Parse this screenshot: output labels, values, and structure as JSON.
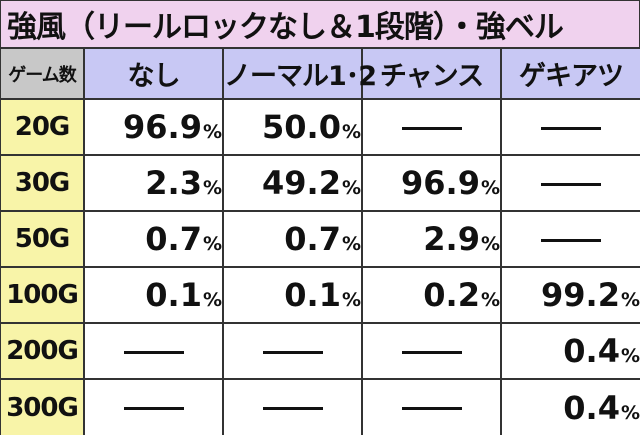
{
  "title": "強風（リールロックなし＆1段階）・強ベル",
  "header": {
    "games_label": "ゲーム数",
    "columns": [
      "なし",
      "ノーマル1･2",
      "チャンス",
      "ゲキアツ"
    ]
  },
  "percent_symbol": "%",
  "rows": [
    {
      "games": "20G",
      "values": [
        "96.9",
        "50.0",
        null,
        null
      ]
    },
    {
      "games": "30G",
      "values": [
        "2.3",
        "49.2",
        "96.9",
        null
      ]
    },
    {
      "games": "50G",
      "values": [
        "0.7",
        "0.7",
        "2.9",
        null
      ]
    },
    {
      "games": "100G",
      "values": [
        "0.1",
        "0.1",
        "0.2",
        "99.2"
      ]
    },
    {
      "games": "200G",
      "values": [
        null,
        null,
        null,
        "0.4"
      ]
    },
    {
      "games": "300G",
      "values": [
        null,
        null,
        null,
        "0.4"
      ]
    }
  ],
  "colors": {
    "title_bg": "#f0d2ee",
    "games_header_bg": "#c8c8c8",
    "column_header_bg": "#c8c8f4",
    "games_cell_bg": "#f8f4a8"
  }
}
